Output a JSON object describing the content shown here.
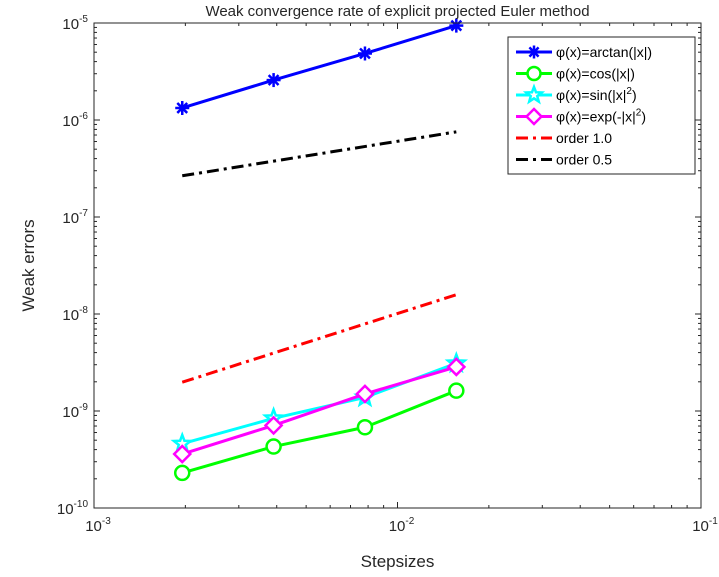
{
  "chart_data": {
    "type": "line",
    "title": "Weak convergence rate of explicit projected Euler method",
    "xlabel": "Stepsizes",
    "ylabel": "Weak errors",
    "xscale": "log",
    "yscale": "log",
    "xlim": [
      0.001,
      0.1
    ],
    "ylim": [
      1e-10,
      1e-05
    ],
    "xticks": [
      {
        "base": "10",
        "exp": "-3",
        "value": 0.001
      },
      {
        "base": "10",
        "exp": "-2",
        "value": 0.01
      },
      {
        "base": "10",
        "exp": "-1",
        "value": 0.1
      }
    ],
    "yticks": [
      {
        "base": "10",
        "exp": "-10",
        "value": 1e-10
      },
      {
        "base": "10",
        "exp": "-9",
        "value": 1e-09
      },
      {
        "base": "10",
        "exp": "-8",
        "value": 1e-08
      },
      {
        "base": "10",
        "exp": "-7",
        "value": 1e-07
      },
      {
        "base": "10",
        "exp": "-6",
        "value": 1e-06
      },
      {
        "base": "10",
        "exp": "-5",
        "value": 1e-05
      }
    ],
    "grid": false,
    "legend_position": "top-right",
    "series": [
      {
        "name": "φ(x)=arctan(|x|)",
        "label_main": "φ(x)=arctan(|x|)",
        "label_sup": "",
        "label_tail": "",
        "color": "#0000ff",
        "marker": "asterisk",
        "dash": "solid",
        "x": [
          0.001953125,
          0.00390625,
          0.0078125,
          0.015625
        ],
        "y": [
          1.33e-06,
          2.58e-06,
          4.85e-06,
          9.4e-06
        ]
      },
      {
        "name": "φ(x)=cos(|x|)",
        "label_main": "φ(x)=cos(|x|)",
        "label_sup": "",
        "label_tail": "",
        "color": "#00ff00",
        "marker": "circle",
        "dash": "solid",
        "x": [
          0.001953125,
          0.00390625,
          0.0078125,
          0.015625
        ],
        "y": [
          2.3e-10,
          4.3e-10,
          6.8e-10,
          1.62e-09
        ]
      },
      {
        "name": "φ(x)=sin(|x|²)",
        "label_main": "φ(x)=sin(|x|",
        "label_sup": "2",
        "label_tail": ")",
        "color": "#00ffff",
        "marker": "pentagram",
        "dash": "solid",
        "x": [
          0.001953125,
          0.00390625,
          0.0078125,
          0.015625
        ],
        "y": [
          4.6e-10,
          8.4e-10,
          1.38e-09,
          3.1e-09
        ]
      },
      {
        "name": "φ(x)=exp(-|x|²)",
        "label_main": "φ(x)=exp(-|x|",
        "label_sup": "2",
        "label_tail": ")",
        "color": "#ff00ff",
        "marker": "diamond",
        "dash": "solid",
        "x": [
          0.001953125,
          0.00390625,
          0.0078125,
          0.015625
        ],
        "y": [
          3.6e-10,
          7.1e-10,
          1.5e-09,
          2.85e-09
        ]
      },
      {
        "name": "order 1.0",
        "label_main": "order 1.0",
        "label_sup": "",
        "label_tail": "",
        "color": "#ff0000",
        "marker": "none",
        "dash": "dashdot",
        "x": [
          0.001953125,
          0.015625
        ],
        "y": [
          1.98e-09,
          1.58e-08
        ]
      },
      {
        "name": "order 0.5",
        "label_main": "order 0.5",
        "label_sup": "",
        "label_tail": "",
        "color": "#000000",
        "marker": "none",
        "dash": "dashdot",
        "x": [
          0.001953125,
          0.015625
        ],
        "y": [
          2.66e-07,
          7.55e-07
        ]
      }
    ]
  }
}
